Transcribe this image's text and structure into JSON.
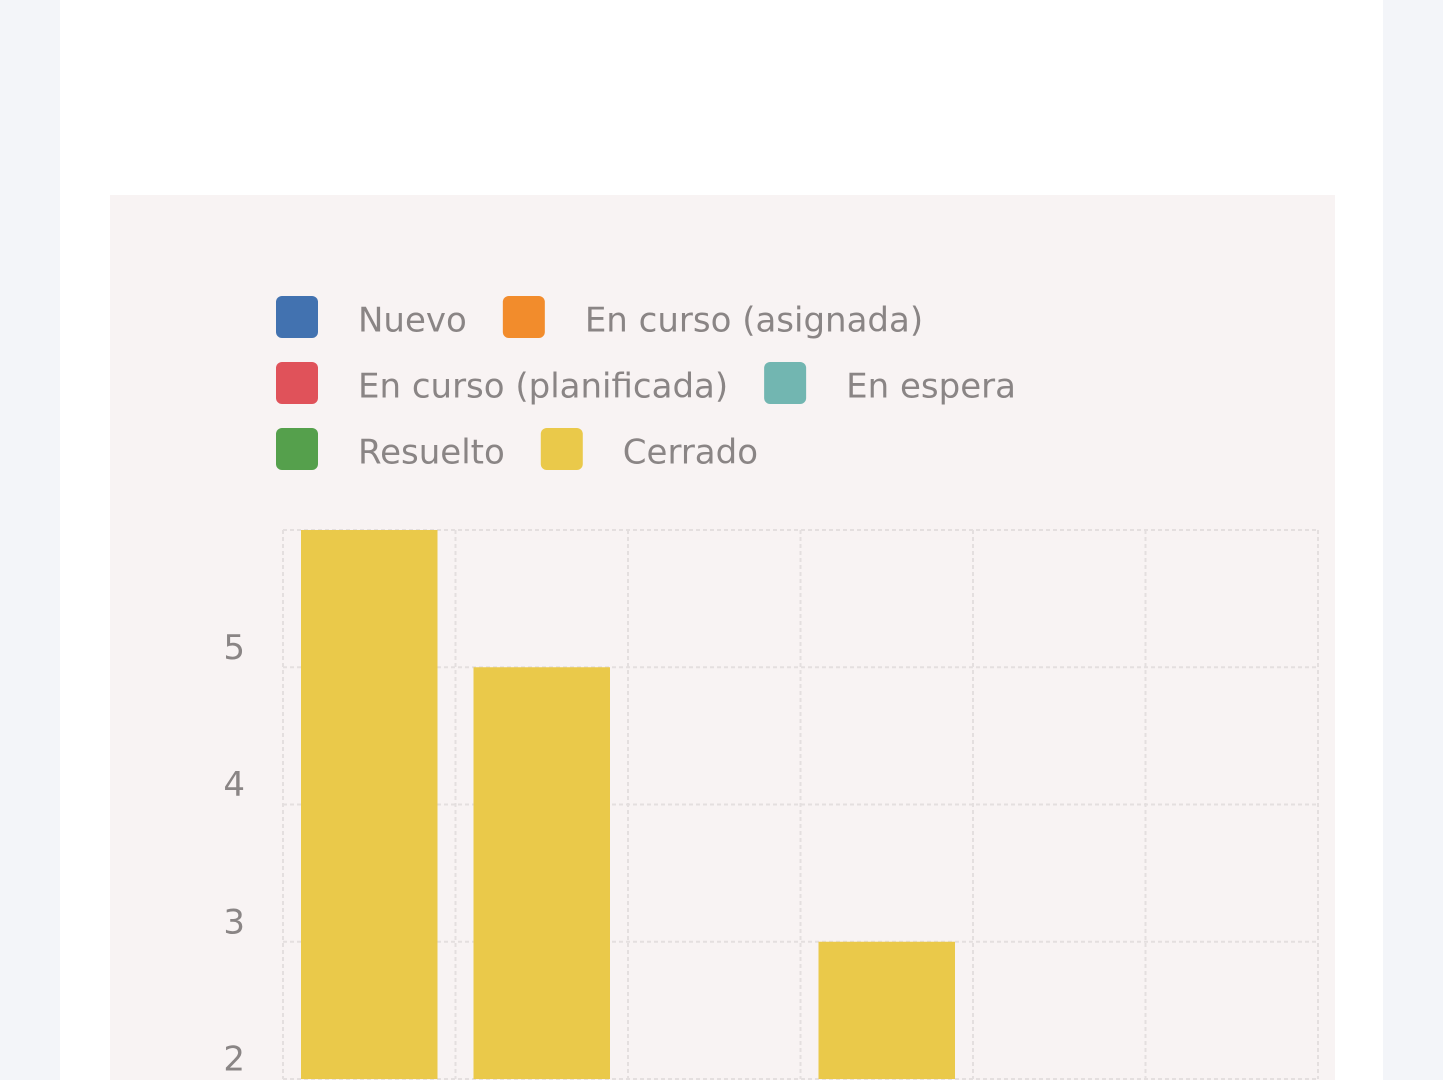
{
  "chart_data": {
    "type": "bar",
    "categories": [
      null,
      null,
      null,
      null,
      null,
      null
    ],
    "series": [
      {
        "name": "Nuevo",
        "color": "#4272b0",
        "values": [
          null,
          null,
          null,
          null,
          null,
          null
        ]
      },
      {
        "name": "En curso (asignada)",
        "color": "#f28c2c",
        "values": [
          null,
          null,
          null,
          null,
          null,
          null
        ]
      },
      {
        "name": "En curso (planificada)",
        "color": "#e0525a",
        "values": [
          null,
          null,
          null,
          null,
          null,
          null
        ]
      },
      {
        "name": "En espera",
        "color": "#72b6b1",
        "values": [
          null,
          null,
          null,
          null,
          null,
          null
        ]
      },
      {
        "name": "Resuelto",
        "color": "#55a04c",
        "values": [
          null,
          null,
          null,
          null,
          null,
          null
        ]
      },
      {
        "name": "Cerrado",
        "color": "#eac94a",
        "values": [
          6,
          5,
          null,
          3,
          null,
          null
        ]
      }
    ],
    "ylim": [
      2,
      6
    ],
    "yticks": [
      2,
      3,
      4,
      5
    ],
    "grid": true
  }
}
